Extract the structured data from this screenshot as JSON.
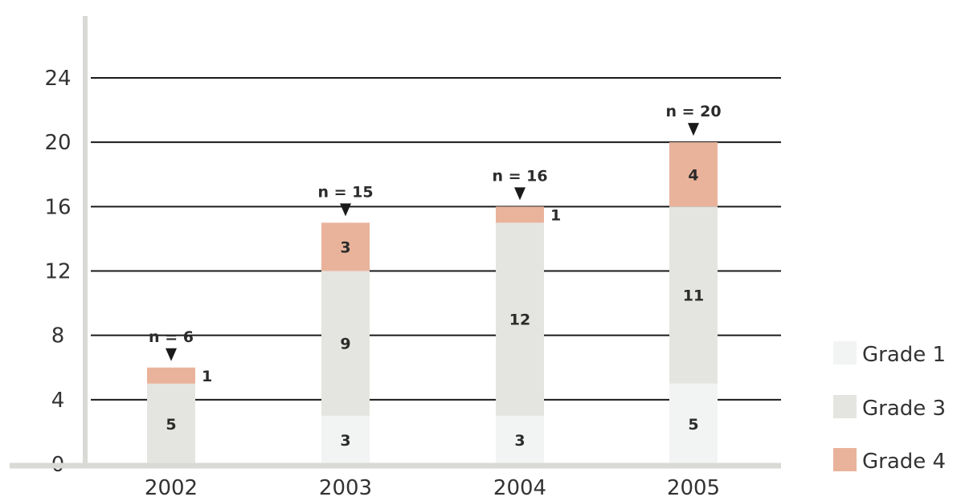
{
  "chart_data": {
    "type": "bar",
    "stacked": true,
    "title": "",
    "xlabel": "",
    "ylabel": "",
    "categories": [
      "2002",
      "2003",
      "2004",
      "2005"
    ],
    "series": [
      {
        "name": "Grade 1",
        "values": [
          0,
          3,
          3,
          5
        ],
        "color": "#f2f4f3"
      },
      {
        "name": "Grade 3",
        "values": [
          5,
          9,
          12,
          11
        ],
        "color": "#e4e5e0"
      },
      {
        "name": "Grade 4",
        "values": [
          1,
          3,
          1,
          4
        ],
        "color": "#e9b39b"
      }
    ],
    "totals": [
      "n = 6",
      "n = 15",
      "n = 16",
      "n = 20"
    ],
    "ylim": [
      0,
      24
    ],
    "yticks": [
      "0",
      "4",
      "8",
      "12",
      "16",
      "20",
      "24"
    ],
    "grid": true,
    "legend_position": "bottom-right"
  }
}
